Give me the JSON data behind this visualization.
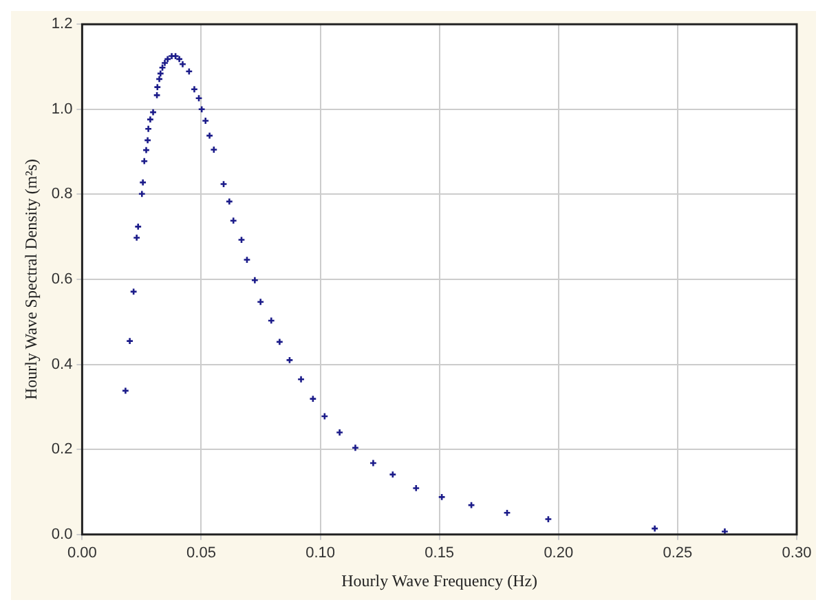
{
  "chart_data": {
    "type": "scatter",
    "xlabel": "Hourly Wave Frequency (Hz)",
    "ylabel": "Hourly Wave Spectral Density (m²s)",
    "x": [
      0.0182,
      0.02,
      0.0216,
      0.0229,
      0.0235,
      0.0251,
      0.0255,
      0.0261,
      0.0269,
      0.0275,
      0.0278,
      0.0286,
      0.0298,
      0.0314,
      0.0316,
      0.0324,
      0.0329,
      0.0337,
      0.0347,
      0.0359,
      0.0376,
      0.0392,
      0.0408,
      0.0422,
      0.0449,
      0.0471,
      0.049,
      0.0502,
      0.0518,
      0.0535,
      0.0553,
      0.0594,
      0.0618,
      0.0635,
      0.0669,
      0.0692,
      0.0725,
      0.0749,
      0.0794,
      0.0829,
      0.0871,
      0.0919,
      0.0969,
      0.1018,
      0.1081,
      0.1147,
      0.1222,
      0.1304,
      0.1402,
      0.151,
      0.1634,
      0.1784,
      0.1957,
      0.2404,
      0.2698
    ],
    "series": [
      {
        "color": "#1c1c8a",
        "values": [
          0.338,
          0.455,
          0.571,
          0.698,
          0.724,
          0.801,
          0.828,
          0.878,
          0.904,
          0.927,
          0.954,
          0.976,
          0.993,
          1.033,
          1.052,
          1.071,
          1.084,
          1.098,
          1.109,
          1.118,
          1.125,
          1.125,
          1.118,
          1.106,
          1.089,
          1.047,
          1.026,
          1.0,
          0.973,
          0.938,
          0.905,
          0.824,
          0.783,
          0.738,
          0.693,
          0.646,
          0.598,
          0.547,
          0.503,
          0.453,
          0.41,
          0.365,
          0.319,
          0.278,
          0.24,
          0.204,
          0.168,
          0.141,
          0.109,
          0.088,
          0.069,
          0.051,
          0.036,
          0.014,
          0.007
        ]
      }
    ],
    "xlim": [
      0,
      0.3
    ],
    "xticks": [
      {
        "value": 0,
        "label": "0.00"
      },
      {
        "value": 0.05,
        "label": "0.05"
      },
      {
        "value": 0.1,
        "label": "0.10"
      },
      {
        "value": 0.15,
        "label": "0.15"
      },
      {
        "value": 0.2,
        "label": "0.20"
      },
      {
        "value": 0.25,
        "label": "0.25"
      },
      {
        "value": 0.3,
        "label": "0.30"
      }
    ],
    "ylim": [
      0,
      1.2
    ],
    "yticks": [
      {
        "value": 0,
        "label": "0.0"
      },
      {
        "value": 0.2,
        "label": "0.2"
      },
      {
        "value": 0.4,
        "label": "0.4"
      },
      {
        "value": 0.6,
        "label": "0.6"
      },
      {
        "value": 0.8,
        "label": "0.8"
      },
      {
        "value": 1.0,
        "label": "1.0"
      },
      {
        "value": 1.2,
        "label": "1.2"
      }
    ],
    "grid": true,
    "legend": false,
    "marker": "cross"
  }
}
